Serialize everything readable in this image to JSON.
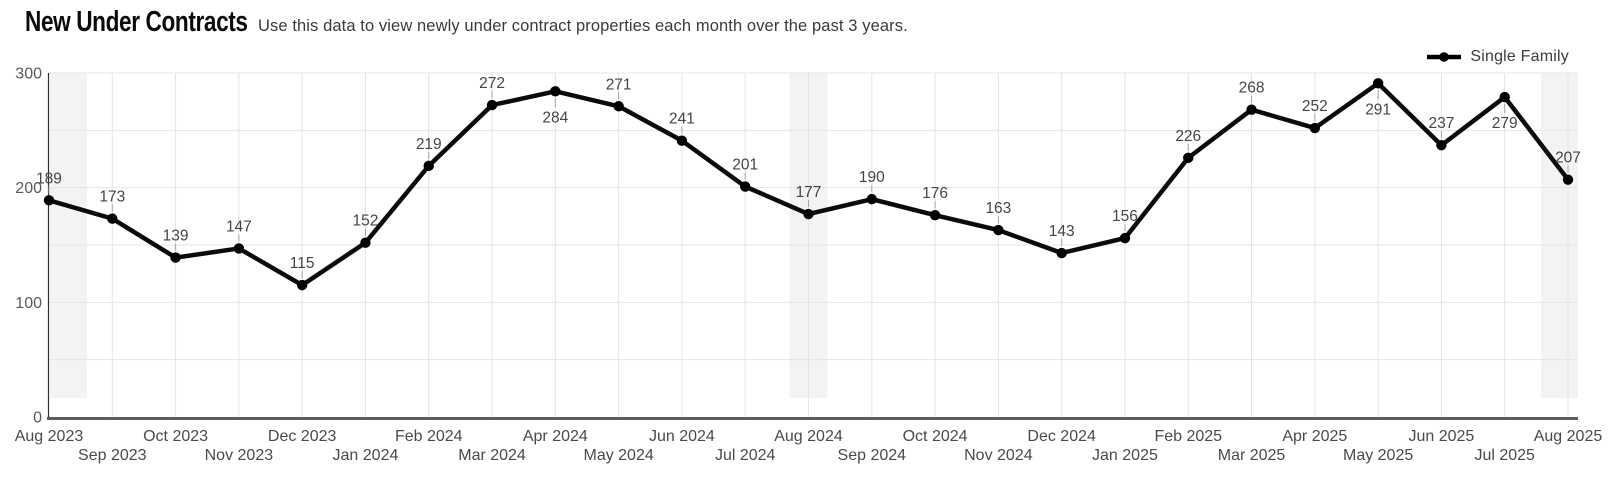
{
  "header": {
    "title": "New Under Contracts",
    "subtitle": "Use this data to view newly under contract properties each month over the past 3 years."
  },
  "legend": {
    "label": "Single Family"
  },
  "colors": {
    "series_line": "#0b0b0b",
    "point": "#000000",
    "grid": "#e4e4e4",
    "highlight_band": "#f3f3f3",
    "x_axis_line": "#5c5c5c",
    "y_axis_line": "#2f2f2f",
    "tick_label": "#4a4a4a",
    "y_tick_label": "#5a5a5a",
    "data_label": "#454545",
    "leader": "#a3a3a3"
  },
  "chart_data": {
    "type": "line",
    "title": "New Under Contracts",
    "xlabel": "",
    "ylabel": "",
    "ylim": [
      0,
      300
    ],
    "y_tick_labels": [
      0,
      100,
      200,
      300
    ],
    "grid_values": [
      50,
      100,
      150,
      200,
      250,
      300
    ],
    "grid": true,
    "legend_position": "top-right",
    "categories": [
      "Aug 2023",
      "Sep 2023",
      "Oct 2023",
      "Nov 2023",
      "Dec 2023",
      "Jan 2024",
      "Feb 2024",
      "Mar 2024",
      "Apr 2024",
      "May 2024",
      "Jun 2024",
      "Jul 2024",
      "Aug 2024",
      "Sep 2024",
      "Oct 2024",
      "Nov 2024",
      "Dec 2024",
      "Jan 2025",
      "Feb 2025",
      "Mar 2025",
      "Apr 2025",
      "May 2025",
      "Jun 2025",
      "Jul 2025",
      "Aug 2025"
    ],
    "series": [
      {
        "name": "Single Family",
        "values": [
          189,
          173,
          139,
          147,
          115,
          152,
          219,
          272,
          284,
          271,
          241,
          201,
          177,
          190,
          176,
          163,
          143,
          156,
          226,
          268,
          252,
          291,
          237,
          279,
          207
        ]
      }
    ],
    "labels_below_indices": [
      8,
      21,
      23
    ],
    "highlighted_categories": [
      "Aug 2023",
      "Aug 2024",
      "Aug 2025"
    ]
  }
}
